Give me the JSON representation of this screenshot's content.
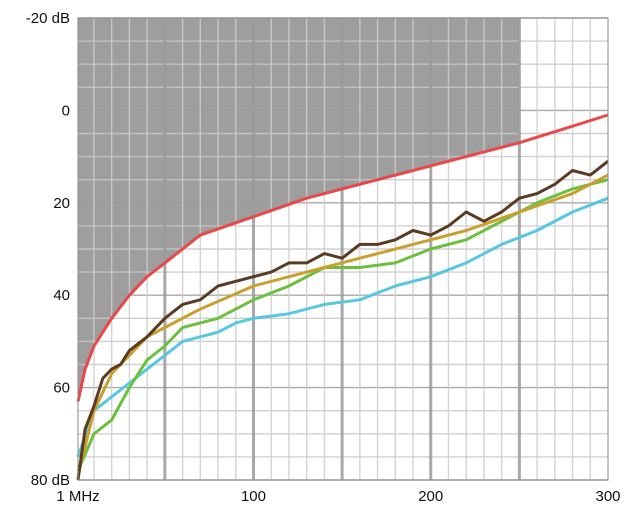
{
  "chart_data": {
    "type": "line",
    "title": "",
    "xlabel": "",
    "ylabel": "",
    "xlim": [
      1,
      300
    ],
    "ylim": [
      80,
      -20
    ],
    "y_axis_inverted": true,
    "x_ticks": [
      {
        "value": 1,
        "label": "1 MHz"
      },
      {
        "value": 100,
        "label": "100"
      },
      {
        "value": 200,
        "label": "200"
      },
      {
        "value": 300,
        "label": "300"
      }
    ],
    "y_ticks": [
      {
        "value": -20,
        "label": "-20 dB"
      },
      {
        "value": 0,
        "label": "0"
      },
      {
        "value": 20,
        "label": "20"
      },
      {
        "value": 40,
        "label": "40"
      },
      {
        "value": 60,
        "label": "60"
      },
      {
        "value": 80,
        "label": "80 dB"
      }
    ],
    "grid": true,
    "shaded_region": {
      "color": "#9e9e9e",
      "x_range": [
        1,
        250
      ],
      "y_from": -20,
      "bounded_below_by": "limit"
    },
    "series": [
      {
        "role": "limit",
        "color": "#e84848",
        "x": [
          1,
          5,
          10,
          20,
          30,
          40,
          50,
          70,
          100,
          130,
          160,
          190,
          220,
          250,
          275,
          300
        ],
        "y": [
          63,
          56,
          51,
          45,
          40,
          36,
          33,
          27,
          23,
          19,
          16,
          13,
          10,
          7,
          4,
          1
        ]
      },
      {
        "color": "#5a3a22",
        "x": [
          1,
          5,
          10,
          15,
          20,
          25,
          30,
          40,
          50,
          60,
          70,
          80,
          90,
          100,
          110,
          120,
          130,
          140,
          150,
          160,
          170,
          180,
          190,
          200,
          210,
          220,
          230,
          240,
          250,
          260,
          270,
          280,
          290,
          300
        ],
        "y": [
          80,
          69,
          64,
          58,
          56,
          55,
          52,
          49,
          45,
          42,
          41,
          38,
          37,
          36,
          35,
          33,
          33,
          31,
          32,
          29,
          29,
          28,
          26,
          27,
          25,
          22,
          24,
          22,
          19,
          18,
          16,
          13,
          14,
          11
        ]
      },
      {
        "color": "#c9a02e",
        "x": [
          1,
          10,
          20,
          30,
          40,
          50,
          70,
          100,
          130,
          160,
          190,
          220,
          250,
          280,
          300
        ],
        "y": [
          79,
          65,
          57,
          53,
          49,
          47,
          43,
          38,
          35,
          32,
          29,
          26,
          22,
          18,
          14
        ]
      },
      {
        "color": "#6dbf3e",
        "x": [
          1,
          10,
          20,
          30,
          40,
          50,
          60,
          70,
          80,
          100,
          120,
          140,
          160,
          180,
          200,
          220,
          240,
          260,
          280,
          300
        ],
        "y": [
          78,
          70,
          67,
          60,
          54,
          51,
          47,
          46,
          45,
          41,
          38,
          34,
          34,
          33,
          30,
          28,
          24,
          20,
          17,
          15
        ]
      },
      {
        "color": "#58c7e0",
        "x": [
          1,
          10,
          20,
          30,
          40,
          50,
          60,
          70,
          80,
          90,
          100,
          120,
          140,
          160,
          180,
          200,
          220,
          240,
          260,
          280,
          300
        ],
        "y": [
          75,
          65,
          62,
          59,
          56,
          53,
          50,
          49,
          48,
          46,
          45,
          44,
          42,
          41,
          38,
          36,
          33,
          29,
          26,
          22,
          19
        ]
      }
    ]
  }
}
